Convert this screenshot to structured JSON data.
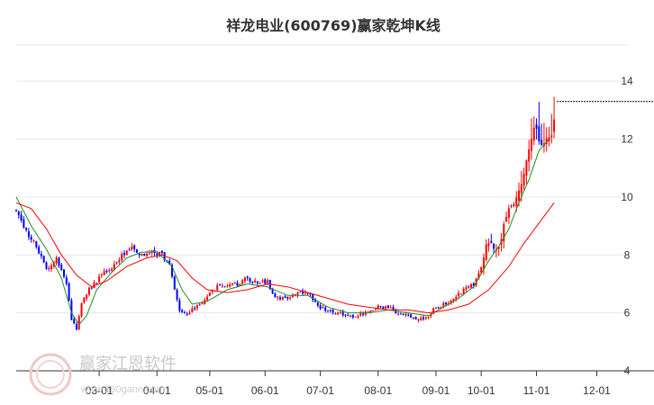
{
  "chart_data": {
    "type": "candlestick",
    "title": "祥龙电业(600769)赢家乾坤K线",
    "xlabel": "",
    "ylabel": "",
    "ylim": [
      4,
      15
    ],
    "y_ticks": [
      4,
      6,
      8,
      10,
      12,
      14
    ],
    "x_ticks": [
      {
        "label": "03-01",
        "day": 33
      },
      {
        "label": "04-01",
        "day": 56
      },
      {
        "label": "05-01",
        "day": 77
      },
      {
        "label": "06-01",
        "day": 99
      },
      {
        "label": "07-01",
        "day": 121
      },
      {
        "label": "08-01",
        "day": 144
      },
      {
        "label": "09-01",
        "day": 167
      },
      {
        "label": "10-01",
        "day": 185
      },
      {
        "label": "11-01",
        "day": 207
      },
      {
        "label": "12-01",
        "day": 231
      }
    ],
    "x_range": [
      0,
      243
    ],
    "last_day": 214,
    "grid": true,
    "colors": {
      "up": "#ff0000",
      "down": "#0000ff",
      "neutral": "#990099",
      "ma_short": "#228b22",
      "ma_long": "#ff0000",
      "dashed_line": "#000000",
      "grid": "#e6e6e6"
    },
    "price_path": [
      [
        0,
        9.5
      ],
      [
        4,
        8.8
      ],
      [
        8,
        8.3
      ],
      [
        12,
        7.5
      ],
      [
        16,
        7.9
      ],
      [
        20,
        7.0
      ],
      [
        22,
        5.8
      ],
      [
        24,
        5.4
      ],
      [
        26,
        6.3
      ],
      [
        28,
        6.7
      ],
      [
        31,
        7.0
      ],
      [
        34,
        7.3
      ],
      [
        38,
        7.6
      ],
      [
        42,
        8.0
      ],
      [
        46,
        8.2
      ],
      [
        50,
        8.0
      ],
      [
        54,
        8.1
      ],
      [
        58,
        8.0
      ],
      [
        61,
        7.7
      ],
      [
        63,
        6.8
      ],
      [
        65,
        6.1
      ],
      [
        68,
        6.0
      ],
      [
        72,
        6.2
      ],
      [
        76,
        6.6
      ],
      [
        80,
        6.9
      ],
      [
        84,
        6.9
      ],
      [
        88,
        7.0
      ],
      [
        92,
        7.2
      ],
      [
        96,
        7.0
      ],
      [
        100,
        7.1
      ],
      [
        102,
        6.6
      ],
      [
        106,
        6.5
      ],
      [
        110,
        6.6
      ],
      [
        114,
        6.7
      ],
      [
        117,
        6.6
      ],
      [
        120,
        6.2
      ],
      [
        124,
        6.1
      ],
      [
        128,
        6.0
      ],
      [
        132,
        5.9
      ],
      [
        136,
        5.9
      ],
      [
        140,
        6.0
      ],
      [
        144,
        6.2
      ],
      [
        148,
        6.2
      ],
      [
        152,
        6.0
      ],
      [
        156,
        5.9
      ],
      [
        160,
        5.8
      ],
      [
        163,
        5.8
      ],
      [
        166,
        6.1
      ],
      [
        170,
        6.3
      ],
      [
        174,
        6.5
      ],
      [
        178,
        6.8
      ],
      [
        182,
        7.0
      ],
      [
        185,
        7.6
      ],
      [
        188,
        8.5
      ],
      [
        191,
        8.2
      ],
      [
        194,
        9.0
      ],
      [
        197,
        9.7
      ],
      [
        200,
        10.2
      ],
      [
        203,
        11.2
      ],
      [
        206,
        12.5
      ],
      [
        209,
        11.9
      ],
      [
        212,
        12.2
      ],
      [
        214,
        12.6
      ]
    ],
    "ma_short": [
      [
        0,
        10.0
      ],
      [
        6,
        9.0
      ],
      [
        12,
        8.2
      ],
      [
        18,
        7.2
      ],
      [
        22,
        6.0
      ],
      [
        25,
        5.6
      ],
      [
        28,
        5.9
      ],
      [
        32,
        6.8
      ],
      [
        38,
        7.4
      ],
      [
        44,
        7.9
      ],
      [
        50,
        8.1
      ],
      [
        56,
        8.1
      ],
      [
        62,
        7.6
      ],
      [
        66,
        6.8
      ],
      [
        70,
        6.3
      ],
      [
        76,
        6.4
      ],
      [
        84,
        6.8
      ],
      [
        92,
        7.0
      ],
      [
        100,
        6.9
      ],
      [
        108,
        6.6
      ],
      [
        116,
        6.6
      ],
      [
        124,
        6.2
      ],
      [
        132,
        6.0
      ],
      [
        140,
        6.0
      ],
      [
        148,
        6.1
      ],
      [
        156,
        6.0
      ],
      [
        164,
        5.9
      ],
      [
        170,
        6.2
      ],
      [
        176,
        6.5
      ],
      [
        182,
        6.9
      ],
      [
        188,
        7.8
      ],
      [
        192,
        8.3
      ],
      [
        196,
        8.9
      ],
      [
        200,
        9.8
      ],
      [
        204,
        10.6
      ],
      [
        208,
        11.6
      ],
      [
        212,
        12.0
      ]
    ],
    "ma_long": [
      [
        0,
        9.8
      ],
      [
        6,
        9.6
      ],
      [
        12,
        8.9
      ],
      [
        18,
        8.0
      ],
      [
        24,
        7.3
      ],
      [
        30,
        6.9
      ],
      [
        36,
        7.1
      ],
      [
        44,
        7.6
      ],
      [
        52,
        7.9
      ],
      [
        58,
        8.0
      ],
      [
        64,
        7.8
      ],
      [
        70,
        7.2
      ],
      [
        76,
        6.8
      ],
      [
        84,
        6.7
      ],
      [
        92,
        6.8
      ],
      [
        100,
        7.0
      ],
      [
        108,
        6.9
      ],
      [
        116,
        6.7
      ],
      [
        124,
        6.5
      ],
      [
        132,
        6.3
      ],
      [
        140,
        6.2
      ],
      [
        148,
        6.1
      ],
      [
        156,
        6.1
      ],
      [
        164,
        6.0
      ],
      [
        172,
        6.1
      ],
      [
        180,
        6.3
      ],
      [
        188,
        6.8
      ],
      [
        196,
        7.6
      ],
      [
        202,
        8.4
      ],
      [
        208,
        9.1
      ],
      [
        214,
        9.8
      ]
    ],
    "last_close_line": 13.3
  }
}
